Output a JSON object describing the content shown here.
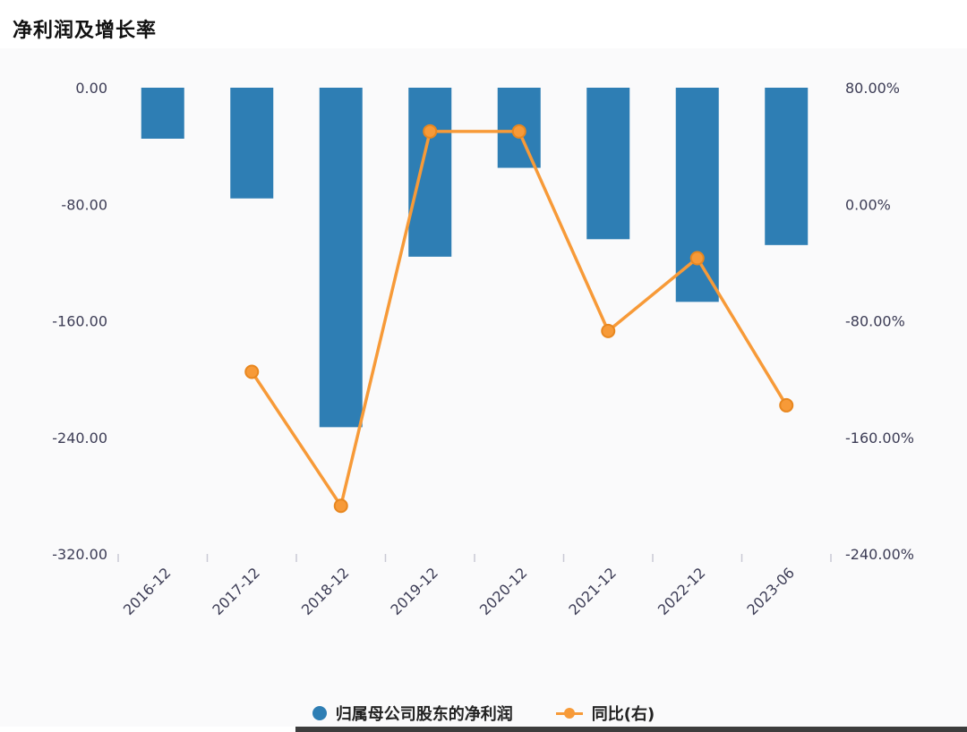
{
  "chart_data": {
    "type": "bar+line",
    "title": "净利润及增长率",
    "categories": [
      "2016-12",
      "2017-12",
      "2018-12",
      "2019-12",
      "2020-12",
      "2021-12",
      "2022-12",
      "2023-06"
    ],
    "series": [
      {
        "name": "归属母公司股东的净利润",
        "type": "bar",
        "axis": "left",
        "color": "#2e7eb4",
        "values": [
          -35,
          -76,
          -233,
          -116,
          -55,
          -104,
          -147,
          -108
        ]
      },
      {
        "name": "同比(右)",
        "type": "line",
        "axis": "right",
        "color": "#f79a38",
        "marker_stroke": "#e8871f",
        "values": [
          null,
          -115,
          -207,
          50,
          50,
          -87,
          -37,
          -138
        ]
      }
    ],
    "left_axis": {
      "max": 0,
      "min": -320,
      "tick_labels": [
        "0.00",
        "-80.00",
        "-160.00",
        "-240.00",
        "-320.00"
      ],
      "tick_values": [
        0,
        -80,
        -160,
        -240,
        -320
      ]
    },
    "right_axis": {
      "max": 80,
      "min": -240,
      "tick_labels": [
        "80.00%",
        "0.00%",
        "-80.00%",
        "-160.00%",
        "-240.00%"
      ],
      "tick_values": [
        80,
        0,
        -80,
        -160,
        -240
      ]
    },
    "legend_position": "bottom",
    "grid": false,
    "style": {
      "axis_text_color": "#3c3c55",
      "tick_color": "#c9c9d4",
      "title_color": "#111111",
      "panel_background": "#fafafb"
    }
  }
}
